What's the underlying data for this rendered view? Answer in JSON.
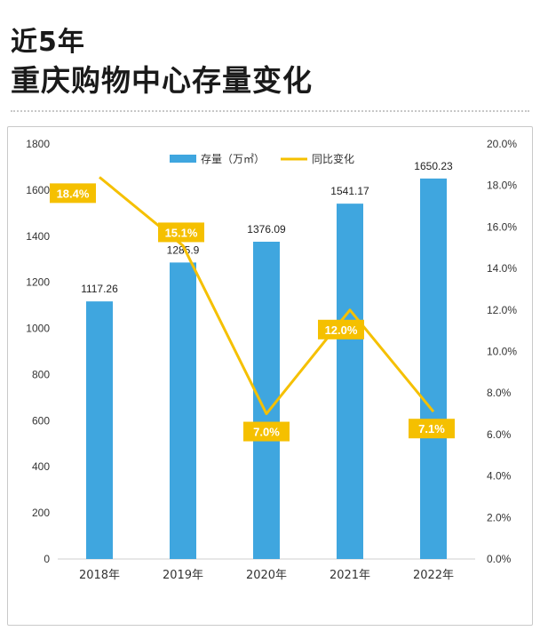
{
  "header": {
    "line1": "近5年",
    "line2": "重庆购物中心存量变化"
  },
  "colors": {
    "bar": "#3fa6df",
    "line": "#f5c000",
    "label_box": "#f5c000",
    "axis_text": "#333333"
  },
  "chart_data": {
    "type": "bar",
    "categories": [
      "2018年",
      "2019年",
      "2020年",
      "2021年",
      "2022年"
    ],
    "series": [
      {
        "name": "存量（万㎡）",
        "type": "bar",
        "axis": "left",
        "values": [
          1117.26,
          1285.9,
          1376.09,
          1541.17,
          1650.23
        ],
        "labels": [
          "1117.26",
          "1285.9",
          "1376.09",
          "1541.17",
          "1650.23"
        ]
      },
      {
        "name": "同比变化",
        "type": "line",
        "axis": "right",
        "values": [
          18.4,
          15.1,
          7.0,
          12.0,
          7.1
        ],
        "labels": [
          "18.4%",
          "15.1%",
          "7.0%",
          "12.0%",
          "7.1%"
        ]
      }
    ],
    "y_left": {
      "min": 0,
      "max": 1800,
      "ticks": [
        "0",
        "200",
        "400",
        "600",
        "800",
        "1000",
        "1200",
        "1400",
        "1600",
        "1800"
      ]
    },
    "y_right": {
      "min": 0,
      "max": 20,
      "ticks": [
        "0.0%",
        "2.0%",
        "4.0%",
        "6.0%",
        "8.0%",
        "10.0%",
        "12.0%",
        "14.0%",
        "16.0%",
        "18.0%",
        "20.0%"
      ]
    },
    "legend_position": "top-center",
    "grid": false
  }
}
